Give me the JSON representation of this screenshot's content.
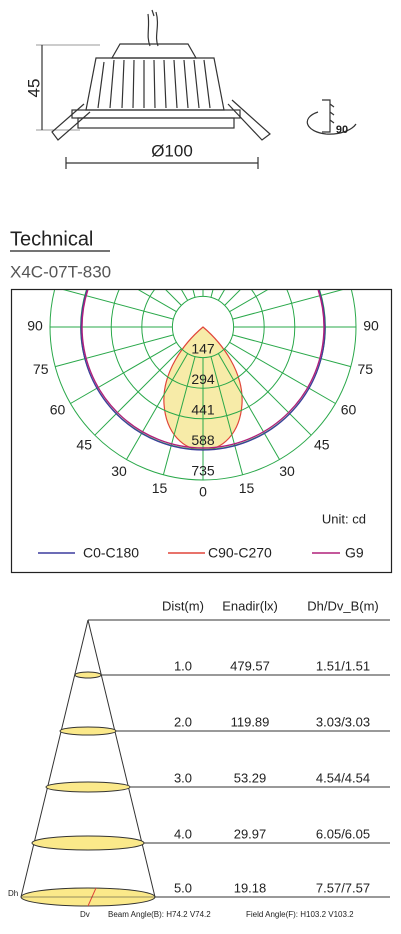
{
  "drawing": {
    "height": "45",
    "diameter": "Ø100",
    "tilt": "90"
  },
  "header": {
    "title": "Technical",
    "model": "X4C-07T-830"
  },
  "polar": {
    "angles_left": [
      90,
      75,
      60,
      45,
      30,
      15
    ],
    "angle_center": 0,
    "angles_right": [
      15,
      30,
      45,
      60,
      75,
      90
    ],
    "intensity_labels": [
      147,
      294,
      441,
      588,
      735
    ],
    "unit": "Unit: cd",
    "legend": [
      {
        "name": "C0-C180",
        "color": "#3b3b9e"
      },
      {
        "name": "C90-C270",
        "color": "#e0453a"
      },
      {
        "name": "G9",
        "color": "#b0207a"
      }
    ]
  },
  "table": {
    "columns": [
      "Dist(m)",
      "Enadir(lx)",
      "Dh/Dv_B(m)"
    ],
    "rows": [
      [
        "1.0",
        "479.57",
        "1.51/1.51"
      ],
      [
        "2.0",
        "119.89",
        "3.03/3.03"
      ],
      [
        "3.0",
        "53.29",
        "4.54/4.54"
      ],
      [
        "4.0",
        "29.97",
        "6.05/6.05"
      ],
      [
        "5.0",
        "19.18",
        "7.57/7.57"
      ]
    ]
  },
  "footer": {
    "dh": "Dh",
    "dv": "Dv",
    "beam": "Beam Angle(B): H74.2 V74.2",
    "field": "Field Angle(F): H103.2 V103.2"
  }
}
